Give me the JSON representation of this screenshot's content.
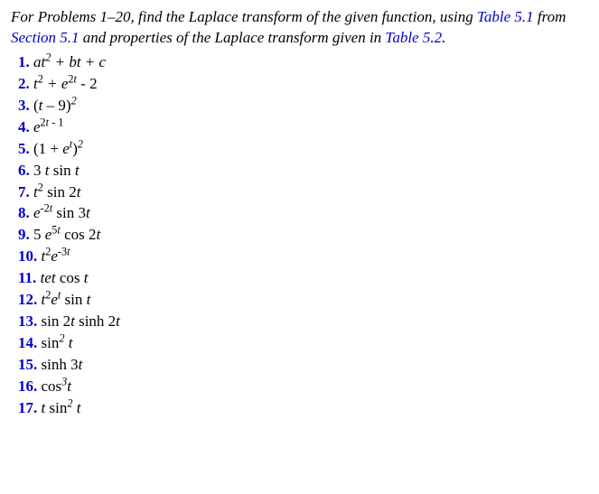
{
  "intro": {
    "part1": "For Problems 1–20, find the Laplace transform of the given function, using ",
    "link1": "Table 5.1",
    "part2": " from ",
    "link2": "Section 5.1",
    "part3": " and properties of the Laplace transform given in ",
    "link3": "Table 5.2",
    "part4": "."
  },
  "problems": [
    {
      "num": "1.",
      "expr": "at<sup>2</sup> + bt + c"
    },
    {
      "num": "2.",
      "expr": "t<sup><span class='up'>2</span></sup> + e<sup><span class='up'>2</span>t</sup> <span class='up'>- 2</span>"
    },
    {
      "num": "3.",
      "expr": "<span class='up'>(</span>t <span class='up'>– 9)</span><sup>2</sup>"
    },
    {
      "num": "4.",
      "expr": "e<sup><span class='up'>2</span>t <span class='up'>- 1</span></sup>"
    },
    {
      "num": "5.",
      "expr": "<span class='up'>(1 +</span> e<sup>t</sup><span class='up'>)</span><sup>2</sup>"
    },
    {
      "num": "6.",
      "expr": "<span class='up'>3</span> t <span class='up'>sin</span> t"
    },
    {
      "num": "7.",
      "expr": "t<sup><span class='up'>2</span></sup> <span class='up'>sin 2</span>t"
    },
    {
      "num": "8.",
      "expr": "e<sup><span class='up'>-2</span>t</sup> <span class='up'>sin 3</span>t"
    },
    {
      "num": "9.",
      "expr": "<span class='up'>5</span> e<sup><span class='up'>5</span>t</sup> <span class='up'>cos 2</span>t"
    },
    {
      "num": "10.",
      "expr": "t<sup><span class='up'>2</span></sup>e<sup><span class='up'>-3</span>t</sup>"
    },
    {
      "num": "11.",
      "expr": "tet <span class='up'>cos</span> t"
    },
    {
      "num": "12.",
      "expr": "t<sup><span class='up'>2</span></sup>e<sup>t</sup> <span class='up'>sin</span> t"
    },
    {
      "num": "13.",
      "expr": "<span class='up'>sin 2</span>t <span class='up'>sinh 2</span>t"
    },
    {
      "num": "14.",
      "expr": "<span class='up'>sin</span><sup>2</sup> t"
    },
    {
      "num": "15.",
      "expr": "<span class='up'>sinh 3</span>t"
    },
    {
      "num": "16.",
      "expr": "<span class='up'>cos</span><sup>3</sup>t"
    },
    {
      "num": "17.",
      "expr": "t <span class='up'>sin</span><sup>2</sup> t"
    }
  ],
  "colors": {
    "link_color": "#0000cc",
    "text_color": "#000000",
    "background": "#ffffff"
  },
  "typography": {
    "font_family": "Times New Roman",
    "font_size": 17,
    "intro_style": "italic",
    "math_style": "italic",
    "number_weight": "bold"
  }
}
